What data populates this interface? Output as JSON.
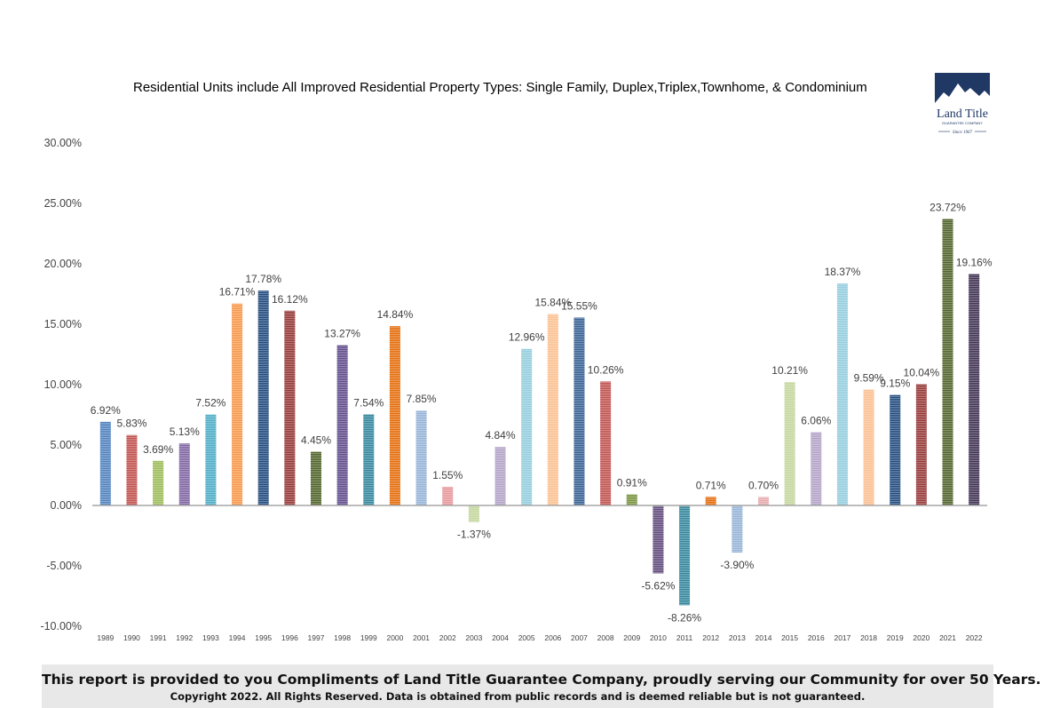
{
  "chart_data": {
    "type": "bar",
    "subtitle": "Residential Units include All Improved Residential Property Types: Single Family, Duplex,Triplex,Townhome, & Condominium",
    "categories": [
      "1989",
      "1990",
      "1991",
      "1992",
      "1993",
      "1994",
      "1995",
      "1996",
      "1997",
      "1998",
      "1999",
      "2000",
      "2001",
      "2002",
      "2003",
      "2004",
      "2005",
      "2006",
      "2007",
      "2008",
      "2009",
      "2010",
      "2011",
      "2012",
      "2013",
      "2014",
      "2015",
      "2016",
      "2017",
      "2018",
      "2019",
      "2020",
      "2021",
      "2022"
    ],
    "values": [
      6.92,
      5.83,
      3.69,
      5.13,
      7.52,
      16.71,
      17.78,
      16.12,
      4.45,
      13.27,
      7.54,
      14.84,
      7.85,
      1.55,
      -1.37,
      4.84,
      12.96,
      15.84,
      15.55,
      10.26,
      0.91,
      -5.62,
      -8.26,
      0.71,
      -3.9,
      0.7,
      10.21,
      6.06,
      18.37,
      9.59,
      9.15,
      10.04,
      23.72,
      19.16
    ],
    "data_labels": [
      "6.92%",
      "5.83%",
      "3.69%",
      "5.13%",
      "7.52%",
      "16.71%",
      "17.78%",
      "16.12%",
      "4.45%",
      "13.27%",
      "7.54%",
      "14.84%",
      "7.85%",
      "1.55%",
      "-1.37%",
      "4.84%",
      "12.96%",
      "15.84%",
      "15.55%",
      "10.26%",
      "0.91%",
      "-5.62%",
      "-8.26%",
      "0.71%",
      "-3.90%",
      "0.70%",
      "10.21%",
      "6.06%",
      "18.37%",
      "9.59%",
      "9.15%",
      "10.04%",
      "23.72%",
      "19.16%"
    ],
    "colors": [
      "#4f81bd",
      "#c0504d",
      "#9bbb59",
      "#8064a2",
      "#4bacc6",
      "#f79646",
      "#1f497d",
      "#943634",
      "#4f6228",
      "#5f4b8b",
      "#31859c",
      "#e46c0a",
      "#95b3d7",
      "#e6969a",
      "#c3d69b",
      "#b2a2c7",
      "#92cddc",
      "#fac090",
      "#366092",
      "#c0504d",
      "#77933c",
      "#604a7b",
      "#31859c",
      "#e46c0a",
      "#95b3d7",
      "#e6a9ab",
      "#c3d69b",
      "#b2a2c7",
      "#93cddd",
      "#fbbf8f",
      "#1f497d",
      "#953735",
      "#4f6228",
      "#3f3151"
    ],
    "ylim": [
      -10,
      30
    ],
    "yticks": [
      -10,
      -5,
      0,
      5,
      10,
      15,
      20,
      25,
      30
    ],
    "ytick_labels": [
      "-10.00%",
      "-5.00%",
      "0.00%",
      "5.00%",
      "10.00%",
      "15.00%",
      "20.00%",
      "25.00%",
      "30.00%"
    ],
    "grid": false,
    "legend": "none"
  },
  "logo": {
    "name": "Land Title",
    "tagline": "GUARANTEE COMPANY",
    "since": "Since 1967"
  },
  "footer": {
    "main": "This report is provided to you Compliments of Land Title Guarantee Company, proudly serving our Community for  over 50 Years.",
    "copyright": "Copyright 2022.  All Rights Reserved. Data is obtained from public records and is deemed reliable but is not guaranteed."
  }
}
